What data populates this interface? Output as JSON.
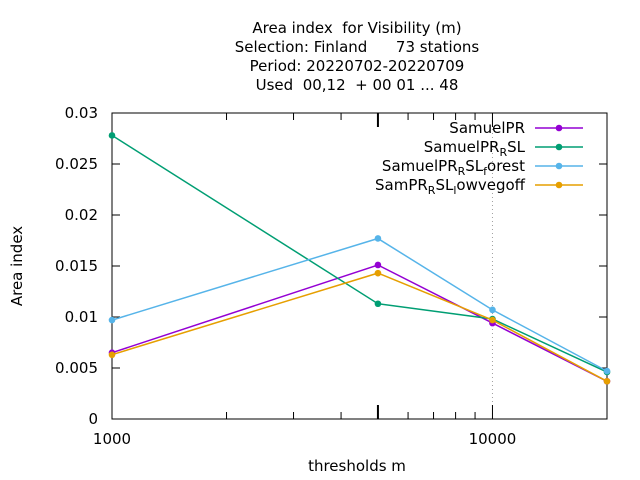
{
  "chart_data": {
    "type": "line",
    "title_lines": [
      "Area index  for Visibility (m)",
      "Selection: Finland      73 stations",
      "Period: 20220702-20220709",
      "Used  00,12  + 00 01 ... 48"
    ],
    "xlabel": "thresholds m",
    "ylabel": "Area index",
    "x_scale": "log",
    "xlim": [
      1000,
      20000
    ],
    "ylim": [
      0,
      0.03
    ],
    "x_ticks": [
      {
        "value": 1000,
        "label": "1000"
      },
      {
        "value": 10000,
        "label": "10000"
      }
    ],
    "y_ticks": [
      {
        "value": 0,
        "label": "0"
      },
      {
        "value": 0.005,
        "label": "0.005"
      },
      {
        "value": 0.01,
        "label": "0.01"
      },
      {
        "value": 0.015,
        "label": "0.015"
      },
      {
        "value": 0.02,
        "label": "0.02"
      },
      {
        "value": 0.025,
        "label": "0.025"
      },
      {
        "value": 0.03,
        "label": "0.03"
      }
    ],
    "grid": "vertical at x=10000",
    "legend_position": "top-right",
    "x": [
      1000,
      5000,
      10000,
      20000
    ],
    "series": [
      {
        "name": "SamuelPR",
        "legend_parts": [
          [
            "SamuelPR",
            ""
          ]
        ],
        "color": "#9400d3",
        "values": [
          0.0065,
          0.0151,
          0.0094,
          0.0037
        ]
      },
      {
        "name": "SamuelPR_RSL",
        "legend_parts": [
          [
            "SamuelPR",
            ""
          ],
          [
            "R",
            "sub"
          ],
          [
            "SL",
            ""
          ]
        ],
        "color": "#009e73",
        "values": [
          0.0278,
          0.0113,
          0.0098,
          0.0046
        ]
      },
      {
        "name": "SamuelPR_RSL_forest",
        "legend_parts": [
          [
            "SamuelPR",
            ""
          ],
          [
            "R",
            "sub"
          ],
          [
            "SL",
            ""
          ],
          [
            "f",
            "sub"
          ],
          [
            "orest",
            ""
          ]
        ],
        "color": "#56b4e9",
        "values": [
          0.0097,
          0.0177,
          0.0107,
          0.0047
        ]
      },
      {
        "name": "SamPR_RSL_lowvegoff",
        "legend_parts": [
          [
            "SamPR",
            ""
          ],
          [
            "R",
            "sub"
          ],
          [
            "SL",
            ""
          ],
          [
            "l",
            "sub"
          ],
          [
            "owvegoff",
            ""
          ]
        ],
        "color": "#e69f00",
        "values": [
          0.0063,
          0.0143,
          0.0097,
          0.0037
        ]
      }
    ]
  }
}
